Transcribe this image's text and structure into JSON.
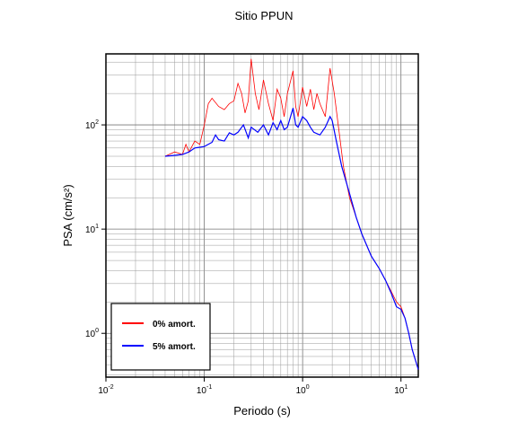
{
  "chart_data": {
    "type": "line",
    "title": "Sitio PPUN",
    "xlabel": "Periodo (s)",
    "ylabel": "PSA (cm/s²)",
    "xscale": "log",
    "yscale": "log",
    "grid": true,
    "legend": "lower left",
    "xlim": [
      0.01,
      15
    ],
    "ylim": [
      0.38,
      480
    ],
    "xticks": [
      {
        "value": 0.01,
        "label": "10",
        "exponent": "-2"
      },
      {
        "value": 0.1,
        "label": "10",
        "exponent": "-1"
      },
      {
        "value": 1,
        "label": "10",
        "exponent": "0"
      },
      {
        "value": 10,
        "label": "10",
        "exponent": "1"
      }
    ],
    "yticks": [
      {
        "value": 1,
        "label": "10",
        "exponent": "0"
      },
      {
        "value": 10,
        "label": "10",
        "exponent": "1"
      },
      {
        "value": 100,
        "label": "10",
        "exponent": "2"
      }
    ],
    "series": [
      {
        "name": "0% amort.",
        "color": "#ff0000",
        "x": [
          0.04,
          0.05,
          0.06,
          0.065,
          0.07,
          0.08,
          0.09,
          0.1,
          0.11,
          0.12,
          0.14,
          0.16,
          0.18,
          0.2,
          0.22,
          0.24,
          0.26,
          0.28,
          0.3,
          0.33,
          0.36,
          0.4,
          0.45,
          0.5,
          0.55,
          0.6,
          0.65,
          0.7,
          0.8,
          0.85,
          0.9,
          1.0,
          1.1,
          1.2,
          1.3,
          1.4,
          1.5,
          1.7,
          1.9,
          2.1,
          2.3,
          2.6,
          3.0,
          3.5,
          4.0,
          5.0,
          6.0,
          7.0,
          8.0,
          9.0,
          10,
          11,
          12,
          13,
          15
        ],
        "values": [
          50,
          55,
          52,
          65,
          55,
          70,
          65,
          100,
          160,
          180,
          150,
          140,
          160,
          170,
          250,
          200,
          130,
          170,
          430,
          200,
          140,
          270,
          160,
          110,
          220,
          180,
          120,
          200,
          330,
          150,
          120,
          230,
          150,
          220,
          140,
          200,
          160,
          120,
          350,
          200,
          100,
          40,
          20,
          13,
          9,
          5.5,
          4.2,
          3.2,
          2.5,
          2.0,
          1.8,
          1.4,
          1.0,
          0.7,
          0.45
        ]
      },
      {
        "name": "5% amort.",
        "color": "#0000ff",
        "x": [
          0.04,
          0.05,
          0.06,
          0.07,
          0.08,
          0.1,
          0.12,
          0.13,
          0.14,
          0.16,
          0.18,
          0.2,
          0.22,
          0.25,
          0.28,
          0.3,
          0.35,
          0.4,
          0.45,
          0.5,
          0.55,
          0.6,
          0.65,
          0.7,
          0.8,
          0.85,
          0.9,
          1.0,
          1.1,
          1.2,
          1.3,
          1.5,
          1.7,
          1.9,
          2.0,
          2.2,
          2.5,
          3.0,
          3.5,
          4.0,
          5.0,
          6.0,
          7.0,
          8.0,
          9.0,
          10,
          11,
          12,
          13,
          15
        ],
        "values": [
          50,
          51,
          52,
          55,
          60,
          62,
          68,
          80,
          72,
          70,
          84,
          80,
          85,
          100,
          75,
          95,
          85,
          100,
          80,
          105,
          90,
          110,
          90,
          95,
          145,
          100,
          95,
          120,
          110,
          95,
          85,
          80,
          95,
          120,
          110,
          70,
          40,
          22,
          13,
          9,
          5.5,
          4.2,
          3.2,
          2.4,
          1.8,
          1.7,
          1.4,
          1.0,
          0.7,
          0.45
        ]
      }
    ]
  }
}
